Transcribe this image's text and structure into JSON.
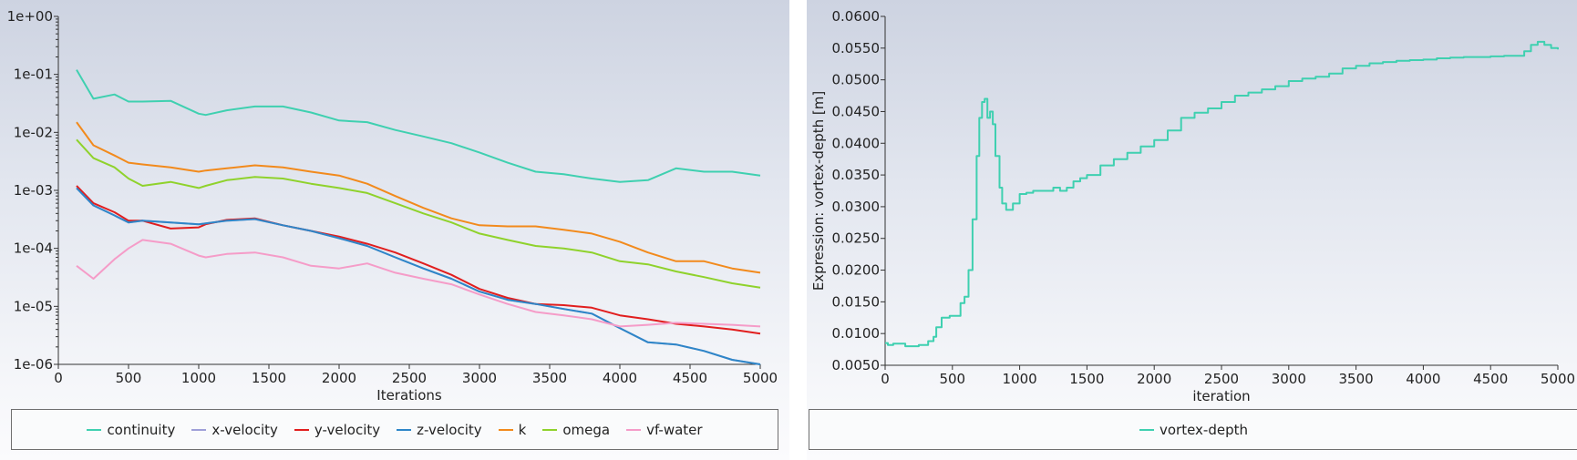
{
  "chart_data": [
    {
      "type": "line",
      "yscale": "log",
      "xlabel": "Iterations",
      "ylabel": "",
      "xlim": [
        0,
        5000
      ],
      "ylim": [
        1e-06,
        1
      ],
      "x_ticks": [
        0,
        500,
        1000,
        1500,
        2000,
        2500,
        3000,
        3500,
        4000,
        4500,
        5000
      ],
      "y_ticks": [
        {
          "value": 1,
          "label": "1e+00"
        },
        {
          "value": 0.1,
          "label": "1e-01"
        },
        {
          "value": 0.01,
          "label": "1e-02"
        },
        {
          "value": 0.001,
          "label": "1e-03"
        },
        {
          "value": 0.0001,
          "label": "1e-04"
        },
        {
          "value": 1e-05,
          "label": "1e-05"
        },
        {
          "value": 1e-06,
          "label": "1e-06"
        }
      ],
      "grid": false,
      "legend": "bottom",
      "x": [
        130,
        250,
        400,
        500,
        600,
        800,
        1000,
        1050,
        1200,
        1400,
        1600,
        1800,
        2000,
        2200,
        2400,
        2600,
        2800,
        3000,
        3200,
        3400,
        3600,
        3800,
        4000,
        4200,
        4400,
        4600,
        4800,
        5000
      ],
      "series": [
        {
          "name": "continuity",
          "color": "#3fd0b0",
          "values": [
            0.12,
            0.038,
            0.045,
            0.034,
            0.034,
            0.035,
            0.021,
            0.02,
            0.024,
            0.028,
            0.028,
            0.022,
            0.016,
            0.015,
            0.011,
            0.0085,
            0.0065,
            0.0045,
            0.003,
            0.0021,
            0.0019,
            0.0016,
            0.0014,
            0.0015,
            0.0024,
            0.0021,
            0.0021,
            0.0018
          ]
        },
        {
          "name": "x-velocity",
          "color": "#9fa0d8",
          "values": [
            0.0011,
            0.00055,
            0.00037,
            0.00028,
            0.0003,
            0.00028,
            0.00026,
            0.00027,
            0.0003,
            0.00032,
            0.00025,
            0.0002,
            0.00015,
            0.00011,
            7e-05,
            4.5e-05,
            3e-05,
            1.8e-05,
            1.3e-05,
            1.1e-05,
            9e-06,
            7.5e-06,
            4.2e-06,
            2.4e-06,
            2.2e-06,
            1.7e-06,
            1.2e-06,
            1e-06
          ]
        },
        {
          "name": "y-velocity",
          "color": "#e11e1e",
          "values": [
            0.0012,
            0.0006,
            0.00042,
            0.0003,
            0.0003,
            0.00022,
            0.00023,
            0.00026,
            0.00031,
            0.00033,
            0.00025,
            0.0002,
            0.00016,
            0.00012,
            8.5e-05,
            5.5e-05,
            3.5e-05,
            2e-05,
            1.4e-05,
            1.1e-05,
            1.05e-05,
            9.5e-06,
            7e-06,
            6e-06,
            5e-06,
            4.5e-06,
            4e-06,
            3.4e-06
          ]
        },
        {
          "name": "z-velocity",
          "color": "#2e86c8",
          "values": [
            0.0011,
            0.00055,
            0.00037,
            0.00028,
            0.0003,
            0.00028,
            0.00026,
            0.00027,
            0.0003,
            0.00032,
            0.00025,
            0.0002,
            0.00015,
            0.00011,
            7e-05,
            4.5e-05,
            3e-05,
            1.8e-05,
            1.3e-05,
            1.1e-05,
            9e-06,
            7.5e-06,
            4.2e-06,
            2.4e-06,
            2.2e-06,
            1.7e-06,
            1.2e-06,
            1e-06
          ]
        },
        {
          "name": "k",
          "color": "#f28a1c",
          "values": [
            0.015,
            0.006,
            0.004,
            0.003,
            0.0028,
            0.0025,
            0.0021,
            0.0022,
            0.0024,
            0.0027,
            0.0025,
            0.0021,
            0.0018,
            0.0013,
            0.0008,
            0.0005,
            0.00033,
            0.00025,
            0.00024,
            0.00024,
            0.00021,
            0.00018,
            0.00013,
            8.5e-05,
            6e-05,
            6e-05,
            4.5e-05,
            3.8e-05
          ]
        },
        {
          "name": "omega",
          "color": "#8fd22c",
          "values": [
            0.0075,
            0.0036,
            0.0025,
            0.0016,
            0.0012,
            0.0014,
            0.0011,
            0.0012,
            0.0015,
            0.0017,
            0.0016,
            0.0013,
            0.0011,
            0.0009,
            0.0006,
            0.0004,
            0.00028,
            0.00018,
            0.00014,
            0.00011,
            0.0001,
            8.5e-05,
            6e-05,
            5.3e-05,
            4e-05,
            3.2e-05,
            2.5e-05,
            2.1e-05
          ]
        },
        {
          "name": "vf-water",
          "color": "#f59cc8",
          "values": [
            5e-05,
            3e-05,
            6.5e-05,
            0.0001,
            0.00014,
            0.00012,
            7.5e-05,
            7e-05,
            8e-05,
            8.5e-05,
            7e-05,
            5e-05,
            4.5e-05,
            5.5e-05,
            3.8e-05,
            3e-05,
            2.4e-05,
            1.6e-05,
            1.1e-05,
            8e-06,
            7e-06,
            6e-06,
            4.5e-06,
            4.8e-06,
            5.2e-06,
            5e-06,
            4.8e-06,
            4.5e-06
          ]
        }
      ]
    },
    {
      "type": "line",
      "step": true,
      "xlabel": "iteration",
      "ylabel": "Expression: vortex-depth [m]",
      "xlim": [
        0,
        5000
      ],
      "ylim": [
        0.005,
        0.06
      ],
      "x_ticks": [
        0,
        500,
        1000,
        1500,
        2000,
        2500,
        3000,
        3500,
        4000,
        4500,
        5000
      ],
      "y_ticks": [
        {
          "value": 0.005,
          "label": "0.0050"
        },
        {
          "value": 0.01,
          "label": "0.0100"
        },
        {
          "value": 0.015,
          "label": "0.0150"
        },
        {
          "value": 0.02,
          "label": "0.0200"
        },
        {
          "value": 0.025,
          "label": "0.0250"
        },
        {
          "value": 0.03,
          "label": "0.0300"
        },
        {
          "value": 0.035,
          "label": "0.0350"
        },
        {
          "value": 0.04,
          "label": "0.0400"
        },
        {
          "value": 0.045,
          "label": "0.0450"
        },
        {
          "value": 0.05,
          "label": "0.0500"
        },
        {
          "value": 0.055,
          "label": "0.0550"
        },
        {
          "value": 0.06,
          "label": "0.0600"
        }
      ],
      "grid": false,
      "legend": "bottom",
      "x": [
        0,
        20,
        60,
        150,
        250,
        320,
        360,
        380,
        420,
        480,
        520,
        560,
        590,
        620,
        650,
        680,
        700,
        720,
        740,
        760,
        780,
        800,
        820,
        850,
        870,
        900,
        950,
        1000,
        1050,
        1100,
        1200,
        1250,
        1300,
        1350,
        1400,
        1450,
        1500,
        1600,
        1700,
        1800,
        1900,
        2000,
        2100,
        2200,
        2300,
        2400,
        2500,
        2600,
        2700,
        2800,
        2900,
        3000,
        3100,
        3200,
        3300,
        3400,
        3500,
        3600,
        3700,
        3800,
        3900,
        4000,
        4100,
        4200,
        4300,
        4400,
        4500,
        4600,
        4700,
        4750,
        4800,
        4850,
        4900,
        4950,
        5000
      ],
      "series": [
        {
          "name": "vortex-depth",
          "color": "#3fd0b0",
          "values": [
            0.0085,
            0.0082,
            0.0084,
            0.008,
            0.0082,
            0.0088,
            0.0095,
            0.011,
            0.0125,
            0.0128,
            0.0128,
            0.0148,
            0.0158,
            0.02,
            0.028,
            0.038,
            0.044,
            0.0465,
            0.047,
            0.044,
            0.045,
            0.043,
            0.038,
            0.033,
            0.0305,
            0.0295,
            0.0305,
            0.032,
            0.0322,
            0.0325,
            0.0325,
            0.033,
            0.0325,
            0.033,
            0.034,
            0.0345,
            0.035,
            0.0365,
            0.0375,
            0.0385,
            0.0395,
            0.0405,
            0.042,
            0.044,
            0.0448,
            0.0455,
            0.0465,
            0.0475,
            0.048,
            0.0485,
            0.049,
            0.0498,
            0.0502,
            0.0505,
            0.051,
            0.0518,
            0.0522,
            0.0526,
            0.0528,
            0.053,
            0.0531,
            0.0532,
            0.0534,
            0.0535,
            0.0536,
            0.0536,
            0.0537,
            0.0538,
            0.0538,
            0.0545,
            0.0555,
            0.056,
            0.0555,
            0.055,
            0.0548
          ]
        }
      ]
    }
  ]
}
